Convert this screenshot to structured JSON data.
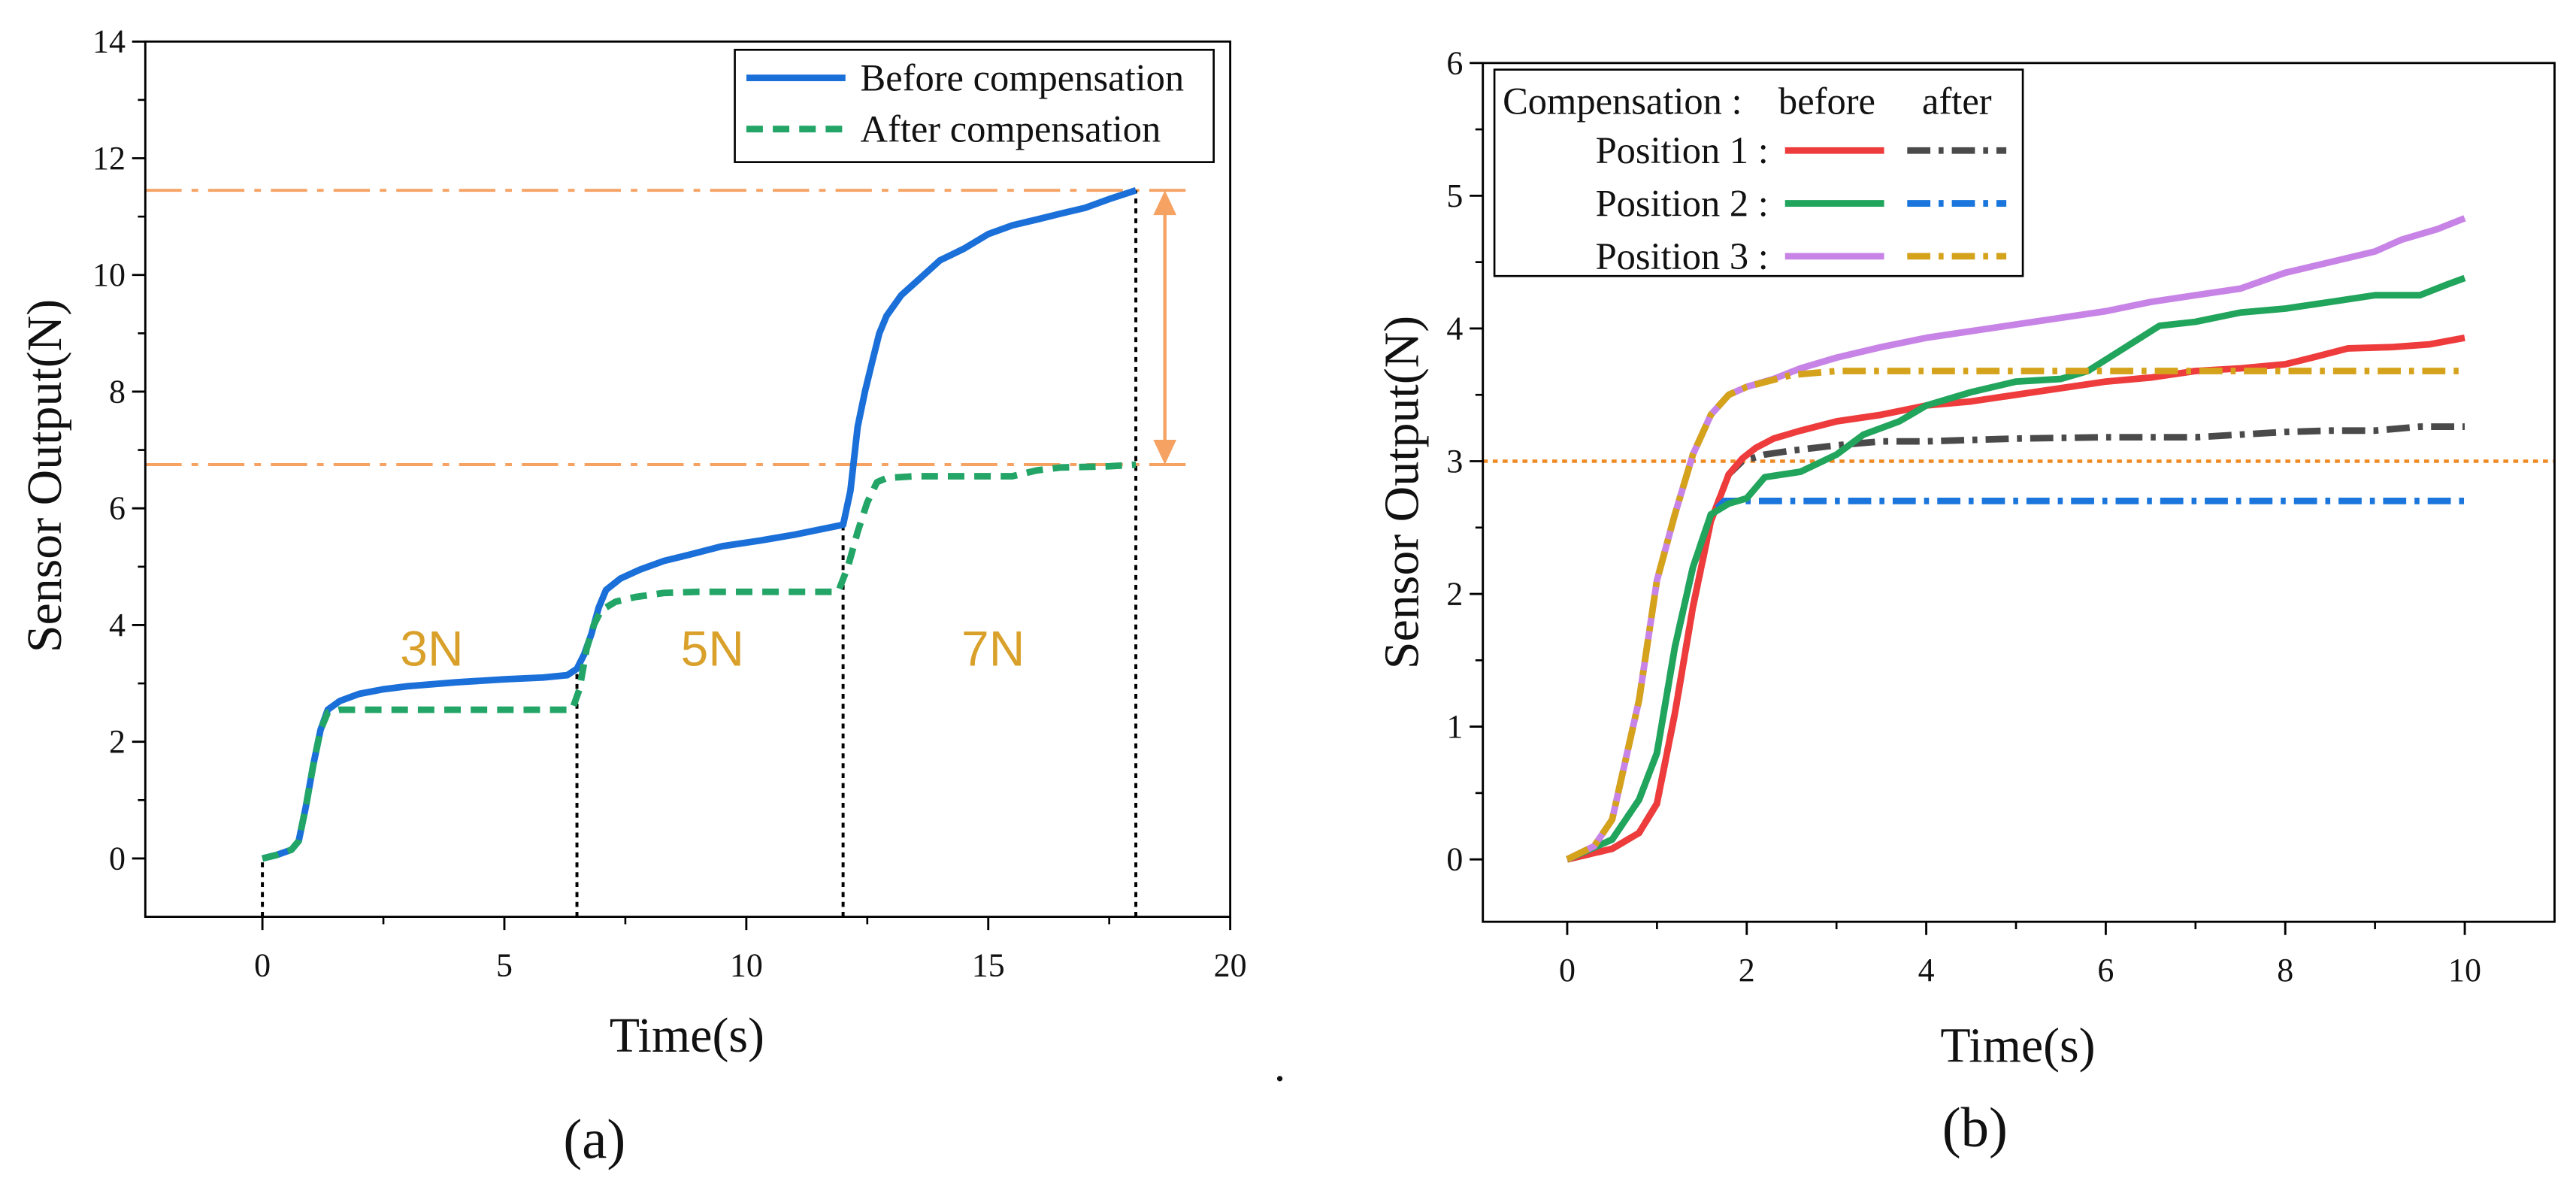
{
  "figure": {
    "separator": "."
  },
  "chart_data": [
    {
      "panel_label": "(a)",
      "type": "line",
      "xlabel": "Time(s)",
      "ylabel": "Sensor Output(N)",
      "xlim": [
        -2.42,
        20
      ],
      "ylim": [
        -1,
        14
      ],
      "xticks": [
        0,
        5,
        10,
        15,
        20
      ],
      "yticks": [
        0,
        2,
        4,
        6,
        8,
        10,
        12,
        14
      ],
      "series": [
        {
          "name": "Before compensation",
          "color": "#1a6fd8",
          "dashed": false,
          "x": [
            0,
            0.3,
            0.6,
            0.75,
            0.9,
            1.05,
            1.2,
            1.35,
            1.6,
            2.0,
            2.5,
            3.0,
            4.0,
            5.0,
            5.8,
            6.3,
            6.5,
            6.65,
            6.8,
            6.95,
            7.1,
            7.4,
            7.8,
            8.3,
            8.8,
            9.5,
            10.3,
            11.0,
            11.6,
            12.0,
            12.15,
            12.3,
            12.45,
            12.6,
            12.75,
            12.9,
            13.2,
            13.6,
            14.0,
            14.5,
            15.0,
            15.5,
            16.0,
            16.5,
            17.0,
            17.5,
            18.05
          ],
          "y": [
            0,
            0.06,
            0.15,
            0.3,
            0.9,
            1.6,
            2.2,
            2.55,
            2.7,
            2.82,
            2.9,
            2.95,
            3.02,
            3.07,
            3.1,
            3.14,
            3.25,
            3.5,
            3.85,
            4.3,
            4.6,
            4.8,
            4.95,
            5.1,
            5.2,
            5.35,
            5.45,
            5.55,
            5.65,
            5.72,
            6.3,
            7.4,
            8.0,
            8.5,
            9.0,
            9.3,
            9.65,
            9.95,
            10.25,
            10.45,
            10.7,
            10.85,
            10.95,
            11.05,
            11.15,
            11.3,
            11.45
          ]
        },
        {
          "name": "After compensation",
          "color": "#22a566",
          "dashed": true,
          "x": [
            0,
            0.3,
            0.6,
            0.75,
            0.9,
            1.05,
            1.2,
            1.35,
            1.6,
            2.5,
            4.0,
            5.5,
            6.4,
            6.55,
            6.7,
            6.85,
            7.0,
            7.3,
            7.7,
            8.3,
            9.0,
            10.0,
            11.0,
            11.9,
            12.1,
            12.3,
            12.5,
            12.7,
            12.9,
            13.5,
            14.5,
            15.5,
            16.0,
            16.5,
            17.5,
            18.05
          ],
          "y": [
            0,
            0.06,
            0.15,
            0.3,
            0.9,
            1.6,
            2.2,
            2.5,
            2.55,
            2.55,
            2.55,
            2.55,
            2.55,
            2.9,
            3.6,
            4.0,
            4.25,
            4.4,
            4.48,
            4.55,
            4.57,
            4.57,
            4.57,
            4.57,
            5.0,
            5.6,
            6.1,
            6.45,
            6.52,
            6.55,
            6.55,
            6.55,
            6.65,
            6.7,
            6.72,
            6.75
          ]
        }
      ],
      "reference_lines": {
        "horizontal": [
          {
            "value": 11.45,
            "until_time": 19.2,
            "color": "#f5a263",
            "dash_dot": true
          },
          {
            "value": 6.75,
            "until_time": 19.2,
            "color": "#f5a263",
            "dash_dot": true
          }
        ],
        "vertical": [
          {
            "at_time": 0,
            "up_to_value": 0,
            "color": "#000000"
          },
          {
            "at_time": 6.5,
            "up_to_value": 3.2,
            "color": "#000000"
          },
          {
            "at_time": 12.0,
            "up_to_value": 5.72,
            "color": "#000000"
          },
          {
            "at_time": 18.05,
            "up_to_value": 11.45,
            "color": "#000000"
          }
        ]
      },
      "arrow": {
        "at_time": 18.65,
        "from_value": 6.75,
        "to_value": 11.45,
        "color": "#f5a263"
      },
      "step_labels": [
        {
          "text": "3N",
          "at_time": 3.5,
          "at_value": 3.6,
          "color": "#d9a02a"
        },
        {
          "text": "5N",
          "at_time": 9.3,
          "at_value": 3.6,
          "color": "#d9a02a"
        },
        {
          "text": "7N",
          "at_time": 15.1,
          "at_value": 3.6,
          "color": "#d9a02a"
        }
      ]
    },
    {
      "panel_label": "(b)",
      "type": "line",
      "xlabel": "Time(s)",
      "ylabel": "Sensor Output(N)",
      "xlim": [
        -0.94,
        11
      ],
      "ylim": [
        -0.47,
        6
      ],
      "xticks": [
        0,
        2,
        4,
        6,
        8,
        10
      ],
      "yticks": [
        0,
        1,
        2,
        3,
        4,
        5,
        6
      ],
      "legend": {
        "header": "Compensation :",
        "columns": [
          "before",
          "after"
        ],
        "rows": [
          "Position 1 :",
          "Position 2 :",
          "Position 3 :"
        ]
      },
      "series": [
        {
          "row": 0,
          "column": 1,
          "color": "#4a4a4a",
          "dash_dot": true,
          "x": [
            0,
            0.5,
            0.8,
            1.0,
            1.2,
            1.4,
            1.6,
            1.8,
            1.95,
            2.2,
            2.5,
            3.0,
            3.5,
            4.0,
            5.0,
            6.0,
            7.0,
            7.5,
            8.0,
            8.5,
            9.0,
            9.5,
            10.0
          ],
          "y": [
            0,
            0.08,
            0.2,
            0.42,
            1.1,
            1.9,
            2.55,
            2.9,
            3.0,
            3.05,
            3.08,
            3.12,
            3.15,
            3.15,
            3.17,
            3.18,
            3.18,
            3.2,
            3.22,
            3.23,
            3.23,
            3.26,
            3.26
          ]
        },
        {
          "row": 0,
          "column": 0,
          "color": "#ee3b3c",
          "dash_dot": false,
          "x": [
            0,
            0.5,
            0.8,
            1.0,
            1.2,
            1.4,
            1.6,
            1.8,
            1.95,
            2.1,
            2.3,
            2.6,
            3.0,
            3.5,
            4.0,
            4.5,
            5.0,
            5.5,
            6.0,
            6.5,
            7.0,
            7.5,
            8.0,
            8.3,
            8.7,
            9.2,
            9.6,
            10.0
          ],
          "y": [
            0,
            0.08,
            0.2,
            0.42,
            1.1,
            1.9,
            2.55,
            2.9,
            3.02,
            3.1,
            3.17,
            3.23,
            3.3,
            3.35,
            3.42,
            3.45,
            3.5,
            3.55,
            3.6,
            3.63,
            3.68,
            3.7,
            3.73,
            3.78,
            3.85,
            3.86,
            3.88,
            3.93
          ]
        },
        {
          "row": 1,
          "column": 1,
          "color": "#1a76dc",
          "dash_dot": true,
          "x": [
            0,
            0.5,
            0.8,
            1.0,
            1.2,
            1.4,
            1.6,
            1.75,
            2.0,
            4.0,
            6.0,
            8.0,
            10.0
          ],
          "y": [
            0,
            0.15,
            0.45,
            0.8,
            1.6,
            2.2,
            2.6,
            2.7,
            2.7,
            2.7,
            2.7,
            2.7,
            2.7
          ]
        },
        {
          "row": 1,
          "column": 0,
          "color": "#21a45b",
          "dash_dot": false,
          "x": [
            0,
            0.5,
            0.8,
            1.0,
            1.2,
            1.4,
            1.6,
            1.8,
            2.0,
            2.2,
            2.6,
            3.0,
            3.3,
            3.7,
            4.0,
            4.5,
            5.0,
            5.5,
            5.8,
            6.2,
            6.6,
            7.0,
            7.5,
            8.0,
            8.5,
            9.0,
            9.5,
            9.8,
            10.0
          ],
          "y": [
            0,
            0.15,
            0.45,
            0.8,
            1.6,
            2.2,
            2.6,
            2.68,
            2.72,
            2.88,
            2.92,
            3.05,
            3.2,
            3.3,
            3.42,
            3.52,
            3.6,
            3.62,
            3.68,
            3.85,
            4.02,
            4.05,
            4.12,
            4.15,
            4.2,
            4.25,
            4.25,
            4.33,
            4.38
          ]
        },
        {
          "row": 2,
          "column": 0,
          "color": "#c784e6",
          "dash_dot": false,
          "x": [
            0,
            0.3,
            0.5,
            0.8,
            1.0,
            1.2,
            1.4,
            1.6,
            1.8,
            2.0,
            2.3,
            2.6,
            3.0,
            3.5,
            4.0,
            5.0,
            6.0,
            6.5,
            7.0,
            7.5,
            8.0,
            8.5,
            9.0,
            9.3,
            9.7,
            10.0
          ],
          "y": [
            0,
            0.1,
            0.3,
            1.2,
            2.1,
            2.6,
            3.05,
            3.35,
            3.5,
            3.56,
            3.62,
            3.7,
            3.78,
            3.86,
            3.93,
            4.03,
            4.13,
            4.2,
            4.25,
            4.3,
            4.42,
            4.5,
            4.58,
            4.67,
            4.75,
            4.83
          ]
        },
        {
          "row": 2,
          "column": 1,
          "color": "#d5a21c",
          "dash_dot": true,
          "x": [
            0,
            0.3,
            0.5,
            0.8,
            1.0,
            1.2,
            1.4,
            1.6,
            1.8,
            2.0,
            2.5,
            3.0,
            5.0,
            7.0,
            10.0
          ],
          "y": [
            0,
            0.1,
            0.3,
            1.2,
            2.1,
            2.6,
            3.05,
            3.35,
            3.5,
            3.56,
            3.65,
            3.68,
            3.68,
            3.68,
            3.68
          ]
        }
      ],
      "reference_lines": {
        "horizontal": [
          {
            "value": 3,
            "color": "#f08a24",
            "dotted": true
          }
        ]
      }
    }
  ]
}
